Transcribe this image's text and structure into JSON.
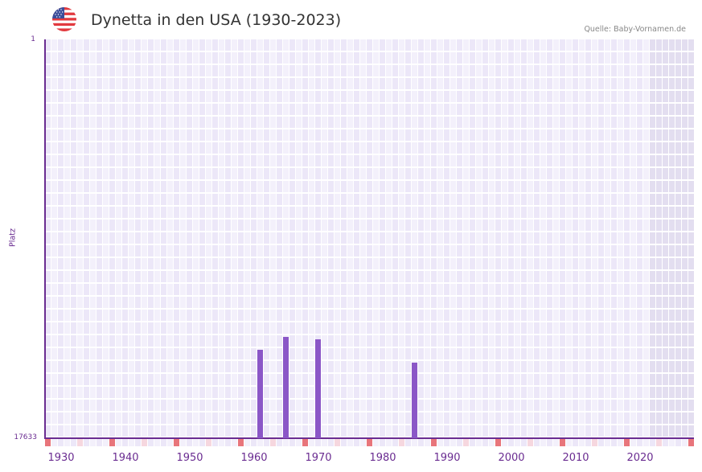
{
  "header": {
    "title": "Dynetta in den USA (1930-2023)",
    "source": "Quelle: Baby-Vornamen.de",
    "flag_icon": "us-flag-icon"
  },
  "colors": {
    "bar": "#8b57c7",
    "axis": "#6a2c91",
    "grid_a": "#f3f0fb",
    "grid_b": "#ece7f8",
    "future_shade": "#e3def0",
    "decade_marker": "#e8757b",
    "half_decade_marker": "#f6d7df"
  },
  "chart_data": {
    "type": "bar",
    "title": "Dynetta in den USA (1930-2023)",
    "xlabel": "",
    "ylabel": "Platz",
    "y_inverted": true,
    "ylim": [
      1,
      17633
    ],
    "y_ticks": [
      "1",
      "17633"
    ],
    "x_range": [
      1928,
      2028
    ],
    "x_ticks": [
      "1930",
      "1940",
      "1950",
      "1960",
      "1970",
      "1980",
      "1990",
      "2000",
      "2010",
      "2020"
    ],
    "grid": true,
    "legend": null,
    "categories": [
      "1961",
      "1965",
      "1970",
      "1985"
    ],
    "values": [
      13722,
      13154,
      13261,
      14292
    ],
    "series": [
      {
        "name": "Platz",
        "x": [
          1961,
          1965,
          1970,
          1985
        ],
        "values": [
          13722,
          13154,
          13261,
          14292
        ]
      }
    ],
    "shaded_region_from": 2022
  },
  "axis": {
    "y_top": "1",
    "y_bottom": "17633",
    "y_title": "Platz",
    "x_ticks": [
      "1930",
      "1940",
      "1950",
      "1960",
      "1970",
      "1980",
      "1990",
      "2000",
      "2010",
      "2020"
    ]
  }
}
